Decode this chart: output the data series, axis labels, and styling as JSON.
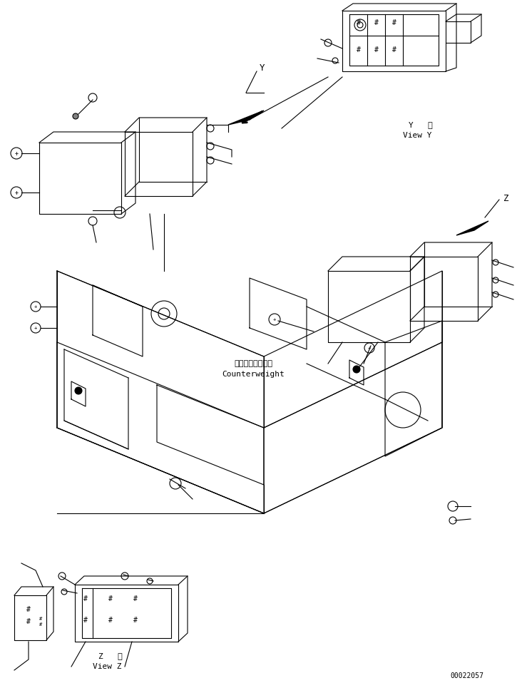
{
  "bg_color": "#ffffff",
  "line_color": "#000000",
  "text_color": "#000000",
  "fig_width": 7.25,
  "fig_height": 9.58,
  "dpi": 100,
  "part_number": "00022057",
  "label_y_kanji": "視",
  "label_y_roman": "View Y",
  "label_z_kanji": "Z   視",
  "label_z_roman": "View Z",
  "label_y_letter": "Y",
  "label_z_letter": "Z",
  "counterweight_jp": "カウンタウェイト",
  "counterweight_en": "Counterweight"
}
